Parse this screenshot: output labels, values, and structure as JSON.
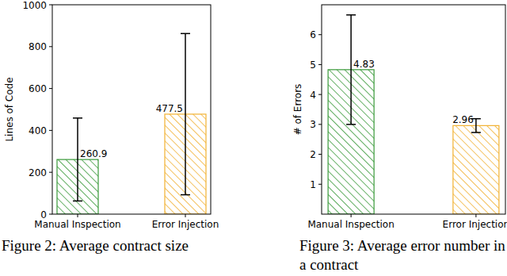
{
  "chart_data": [
    {
      "type": "bar",
      "title": "Figure 2: Average contract size",
      "y_label": "Lines of Code",
      "categories": [
        "Manual Inspection",
        "Error Injection"
      ],
      "values": [
        260.9,
        477.5
      ],
      "errors": [
        198,
        385
      ],
      "colors": [
        "#3a9a3a",
        "#f2b233"
      ],
      "ylim": [
        0,
        1000
      ],
      "yticks": [
        0,
        200,
        400,
        600,
        800,
        1000
      ],
      "data_labels": true
    },
    {
      "type": "bar",
      "title": "Figure 3: Average error number in a contract",
      "y_label": "# of Errors",
      "categories": [
        "Manual Inspection",
        "Error Injection"
      ],
      "values": [
        4.83,
        2.96
      ],
      "errors": [
        1.83,
        0.23
      ],
      "colors": [
        "#3a9a3a",
        "#f2b233"
      ],
      "ylim": [
        0,
        7
      ],
      "yticks": [
        1,
        2,
        3,
        4,
        5,
        6
      ],
      "data_labels": true
    }
  ]
}
